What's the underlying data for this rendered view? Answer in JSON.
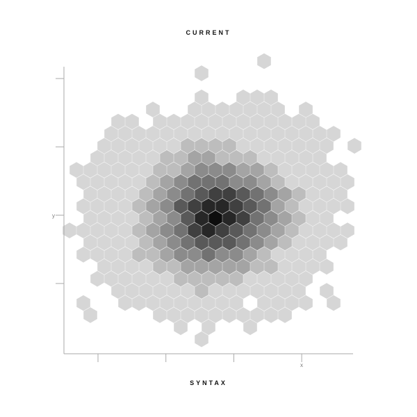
{
  "chart_data": {
    "type": "hexbin",
    "title": "CURRENT",
    "footer": "SYNTAX",
    "xlabel": "x",
    "ylabel": "y",
    "x_ticks": 4,
    "y_ticks": 4,
    "tick_labels_shown": false,
    "grid": false,
    "color_scale": {
      "low": "#d6d6d6",
      "high": "#0e0e0e",
      "levels": 9
    },
    "density_levels_by_row_top_to_bottom": [
      "000000000000001000000",
      "000000000100000000000",
      "000000000000000000000",
      "000000000100111000000",
      "000000100111111101000",
      "000110111111111111000",
      "000111111111111111110",
      "001111112222111111101",
      "001111122332221111100",
      "111111223444332111110",
      "011111234555443211111",
      "011112345677654321110",
      "011112346788765321111",
      "011112346898754321100",
      "111112345787654321111",
      "011112345666543211110",
      "011112234454432111100",
      "001111223333322111100",
      "001111112222211111000",
      "000111111211111110100",
      "010011111111101111010",
      "010000111111111100000",
      "000000001010010000000",
      "000000000100000000000"
    ]
  }
}
